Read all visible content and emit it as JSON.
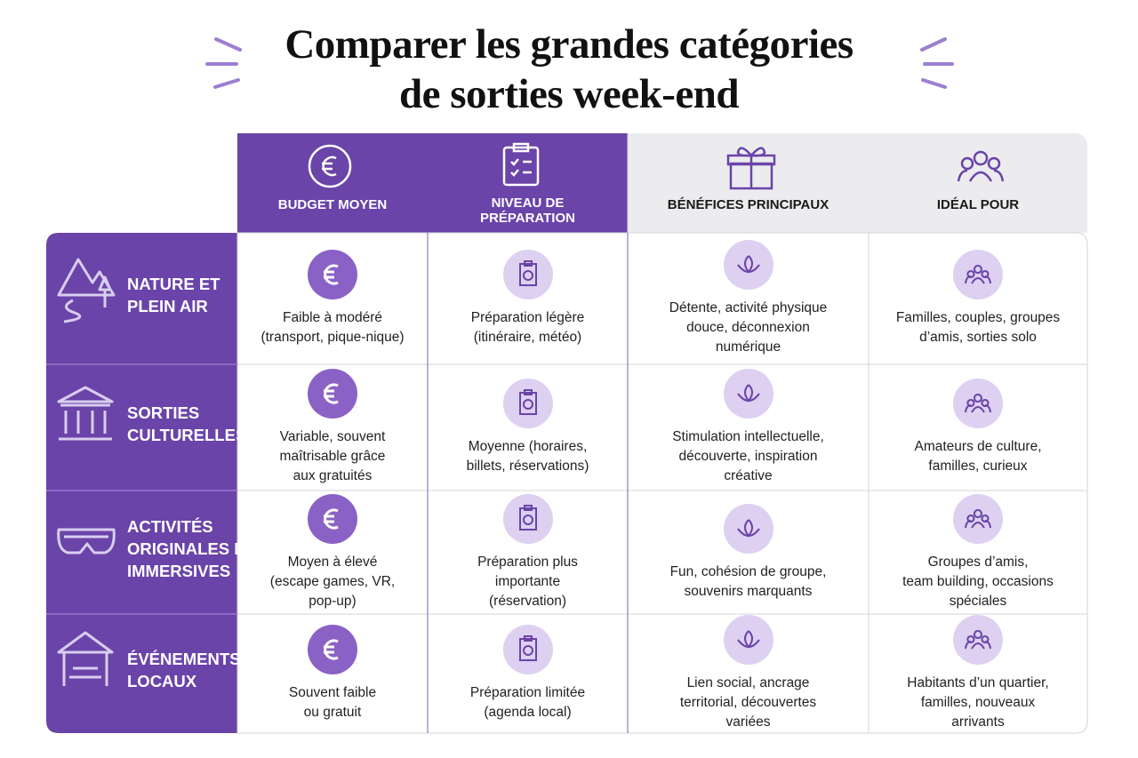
{
  "title": "Comparer les grandes catégories\nde sorties week-end",
  "table": {
    "headers": [
      "BUDGET MOYEN",
      "NIVEAU DE\nPRÉPARATION",
      "BÉNÉFICES PRINCIPAUX",
      "IDÉAL POUR"
    ],
    "rows": [
      {
        "label": "NATURE ET\nPLEIN AIR",
        "cells": [
          "Faible à modéré\n(transport, pique-nique)",
          "Préparation légère\n(itinéraire, météo)",
          "Détente, activité physique\ndouce, déconnexion\nnumérique",
          "Familles, couples, groupes\nd’amis, sorties solo"
        ]
      },
      {
        "label": "SORTIES\nCULTURELLES",
        "cells": [
          "Variable, souvent\nmaîtrisable grâce\naux gratuités",
          "Moyenne (horaires,\nbillets, réservations)",
          "Stimulation intellectuelle,\ndécouverte, inspiration\ncréative",
          "Amateurs de culture,\nfamilles, curieux"
        ]
      },
      {
        "label": "ACTIVITÉS\nORIGINALES ET\nIMMERSIVES",
        "cells": [
          "Moyen à élevé\n(escape games, VR,\npop-up)",
          "Préparation plus\nimportante\n(réservation)",
          "Fun, cohésion de groupe,\nsouvenirs marquants",
          "Groupes d’amis,\nteam building, occasions\nspéciales"
        ]
      },
      {
        "label": "ÉVÉNEMENTS\nLOCAUX",
        "cells": [
          "Souvent faible\nou gratuit",
          "Préparation limitée\n(agenda local)",
          "Lien social, ancrage\nterritorial, découvertes\nvariées",
          "Habitants d’un quartier,\nfamilles, nouveaux\narrivants"
        ]
      }
    ]
  }
}
